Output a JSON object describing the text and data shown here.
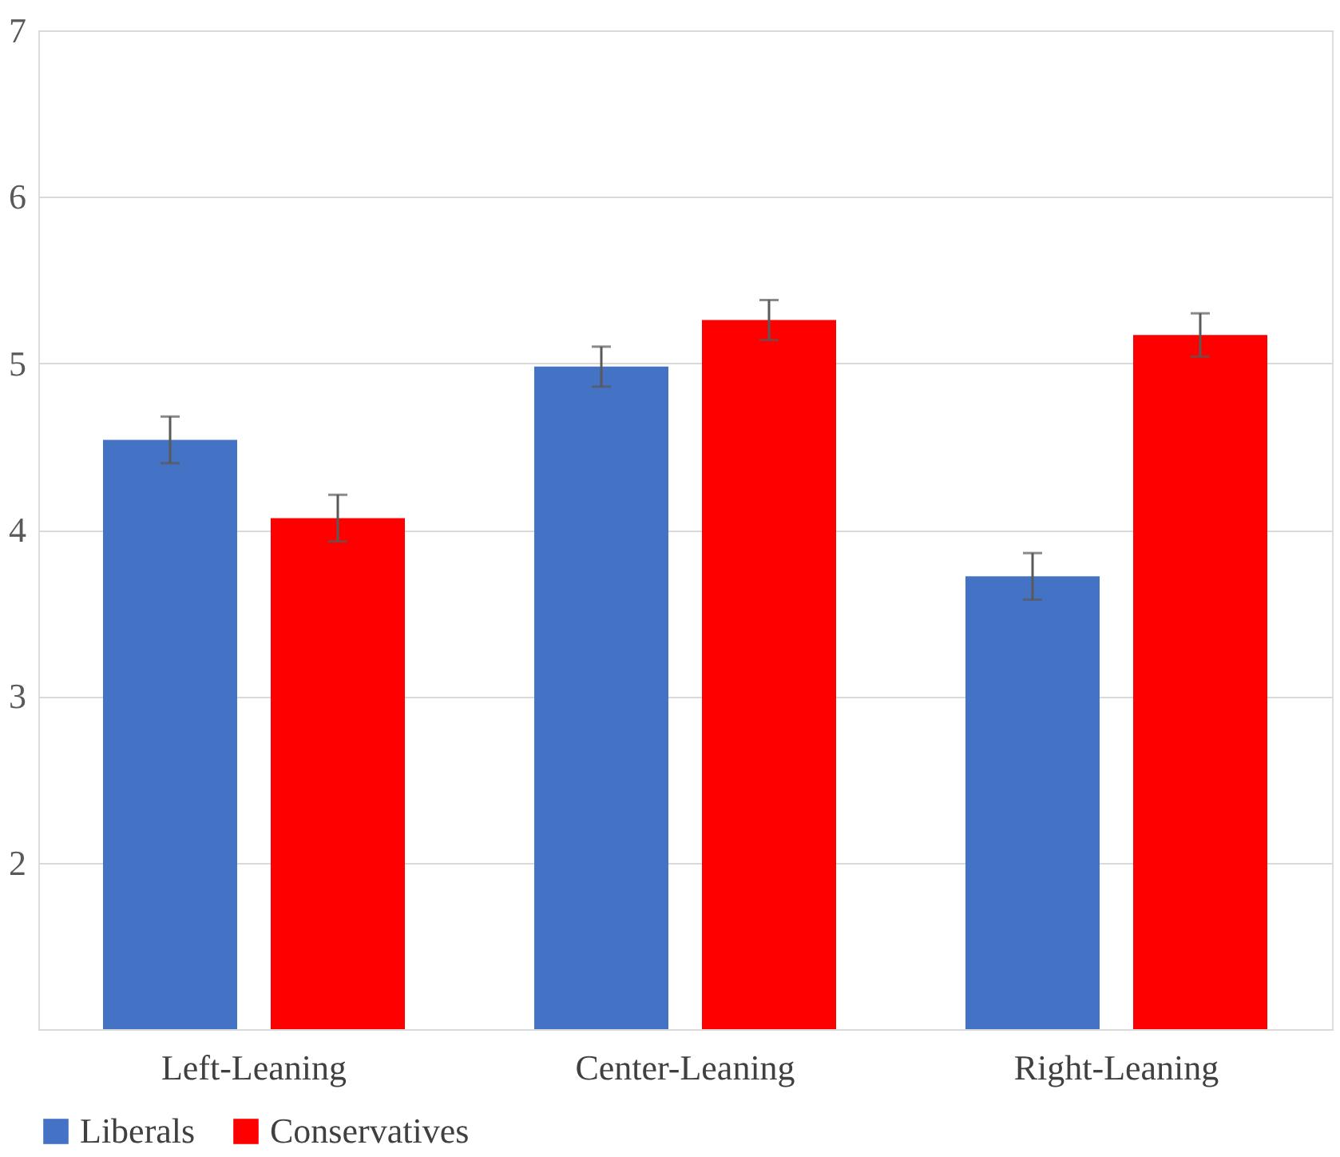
{
  "chart_data": {
    "type": "bar",
    "categories": [
      "Left-Leaning",
      "Center-Leaning",
      "Right-Leaning"
    ],
    "series": [
      {
        "name": "Liberals",
        "color": "#4472c4",
        "values": [
          4.54,
          4.98,
          3.72
        ],
        "errors": [
          0.14,
          0.12,
          0.14
        ]
      },
      {
        "name": "Conservatives",
        "color": "#ff0000",
        "values": [
          4.07,
          5.26,
          5.17
        ],
        "errors": [
          0.14,
          0.12,
          0.13
        ]
      }
    ],
    "ylim": [
      1,
      7
    ],
    "yticks": [
      {
        "value": 1,
        "label": null
      },
      2,
      3,
      4,
      5,
      6,
      7
    ],
    "grid": "y",
    "legend": "bottom"
  }
}
